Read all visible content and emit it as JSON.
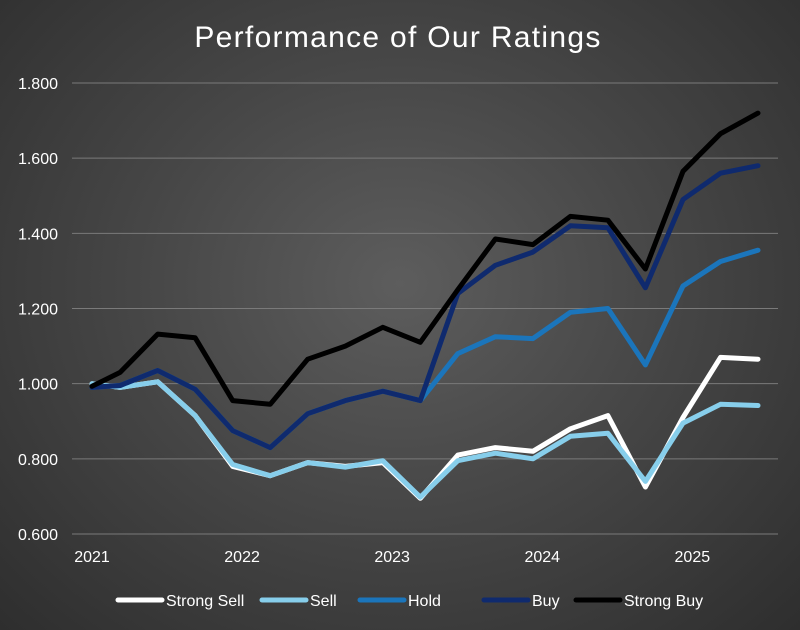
{
  "chart_data": {
    "type": "line",
    "title": "Performance of Our Ratings",
    "xlabel": "",
    "ylabel": "",
    "ylim": [
      0.6,
      1.8
    ],
    "yticks": [
      0.6,
      0.8,
      1.0,
      1.2,
      1.4,
      1.6,
      1.8
    ],
    "ytick_labels": [
      "0.600",
      "0.800",
      "1.000",
      "1.200",
      "1.400",
      "1.600",
      "1.800"
    ],
    "xticks": [
      0,
      4,
      8,
      12,
      16
    ],
    "xtick_labels": [
      "2021",
      "2022",
      "2023",
      "2024",
      "2025"
    ],
    "x": [
      0,
      0.75,
      1.75,
      2.75,
      3.75,
      4.75,
      5.75,
      6.75,
      7.75,
      8.75,
      9.75,
      10.75,
      11.75,
      12.75,
      13.75,
      14.75,
      15.75,
      16.75,
      17.75
    ],
    "grid": true,
    "legend_position": "bottom",
    "colors": {
      "Strong Sell": "#ffffff",
      "Sell": "#87ceeb",
      "Hold": "#1b75bb",
      "Buy": "#0f2a6e",
      "Strong Buy": "#000000"
    },
    "series": [
      {
        "name": "Strong Sell",
        "values": [
          1.0,
          0.99,
          1.005,
          0.915,
          0.78,
          0.755,
          0.79,
          0.78,
          0.79,
          0.695,
          0.81,
          0.83,
          0.82,
          0.88,
          0.915,
          0.725,
          0.91,
          1.07,
          1.065
        ]
      },
      {
        "name": "Sell",
        "values": [
          1.0,
          0.99,
          1.005,
          0.915,
          0.785,
          0.755,
          0.79,
          0.778,
          0.795,
          0.698,
          0.795,
          0.815,
          0.8,
          0.86,
          0.868,
          0.74,
          0.895,
          0.945,
          0.942
        ]
      },
      {
        "name": "Hold",
        "values": [
          0.99,
          0.995,
          1.035,
          0.985,
          0.875,
          0.83,
          0.92,
          0.955,
          0.98,
          0.955,
          1.08,
          1.125,
          1.12,
          1.19,
          1.2,
          1.05,
          1.26,
          1.325,
          1.355
        ]
      },
      {
        "name": "Buy",
        "values": [
          0.99,
          0.995,
          1.035,
          0.985,
          0.875,
          0.83,
          0.92,
          0.955,
          0.98,
          0.955,
          1.24,
          1.315,
          1.35,
          1.42,
          1.415,
          1.255,
          1.49,
          1.56,
          1.58
        ]
      },
      {
        "name": "Strong Buy",
        "values": [
          0.993,
          1.03,
          1.132,
          1.122,
          0.955,
          0.945,
          1.065,
          1.1,
          1.15,
          1.11,
          1.25,
          1.385,
          1.37,
          1.445,
          1.435,
          1.305,
          1.565,
          1.665,
          1.72
        ]
      }
    ]
  }
}
